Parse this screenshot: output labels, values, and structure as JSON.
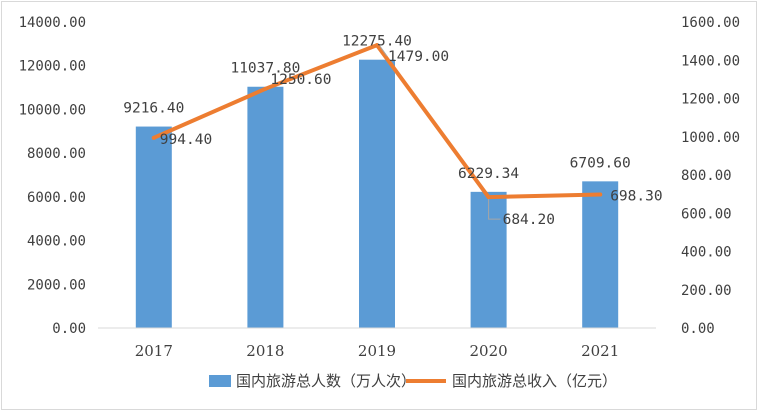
{
  "chart_data": {
    "type": "bar",
    "categories": [
      "2017",
      "2018",
      "2019",
      "2020",
      "2021"
    ],
    "series": [
      {
        "name": "国内旅游总人数（万人次）",
        "type": "bar",
        "axis": "left",
        "color": "#5B9BD5",
        "values": [
          9216.4,
          11037.8,
          12275.4,
          6229.34,
          6709.6
        ],
        "labels": [
          "9216.40",
          "11037.80",
          "12275.40",
          "6229.34",
          "6709.60"
        ]
      },
      {
        "name": "国内旅游总收入（亿元）",
        "type": "line",
        "axis": "right",
        "color": "#ED7D31",
        "values": [
          994.4,
          1250.6,
          1479.0,
          684.2,
          698.3
        ],
        "labels": [
          "994.40",
          "1250.60",
          "1479.00",
          "684.20",
          "698.30"
        ]
      }
    ],
    "y_left": {
      "min": 0,
      "max": 14000,
      "ticks": [
        "0.00",
        "2000.00",
        "4000.00",
        "6000.00",
        "8000.00",
        "10000.00",
        "12000.00",
        "14000.00"
      ]
    },
    "y_right": {
      "min": 0,
      "max": 1600,
      "ticks": [
        "0.00",
        "200.00",
        "400.00",
        "600.00",
        "800.00",
        "1000.00",
        "1200.00",
        "1400.00",
        "1600.00"
      ]
    },
    "grid": false,
    "legend_position": "bottom"
  }
}
